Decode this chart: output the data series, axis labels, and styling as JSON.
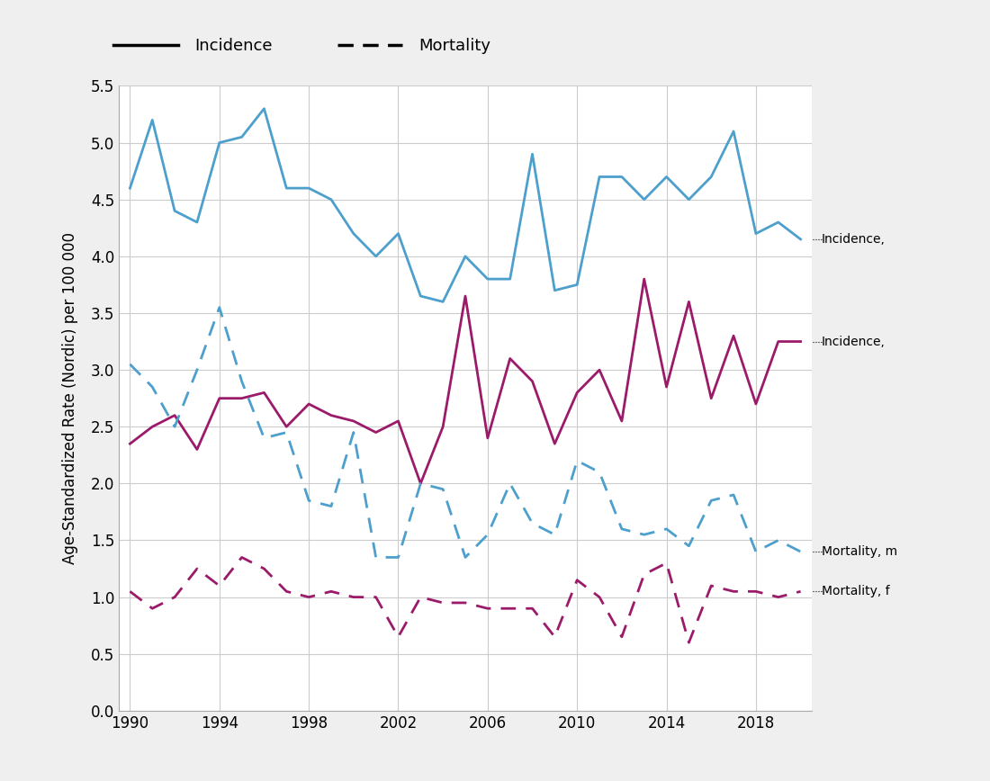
{
  "years": [
    1990,
    1991,
    1992,
    1993,
    1994,
    1995,
    1996,
    1997,
    1998,
    1999,
    2000,
    2001,
    2002,
    2003,
    2004,
    2005,
    2006,
    2007,
    2008,
    2009,
    2010,
    2011,
    2012,
    2013,
    2014,
    2015,
    2016,
    2017,
    2018,
    2019,
    2020
  ],
  "incidence_male": [
    4.6,
    5.2,
    4.4,
    4.3,
    5.0,
    5.05,
    5.3,
    4.6,
    4.6,
    4.5,
    4.2,
    4.0,
    4.2,
    3.65,
    3.6,
    4.0,
    3.8,
    3.8,
    4.9,
    3.7,
    3.75,
    4.7,
    4.7,
    4.5,
    4.7,
    4.5,
    4.7,
    5.1,
    4.2,
    4.3,
    4.15
  ],
  "incidence_female": [
    2.35,
    2.5,
    2.6,
    2.3,
    2.75,
    2.75,
    2.8,
    2.5,
    2.7,
    2.6,
    2.55,
    2.45,
    2.55,
    2.0,
    2.5,
    3.65,
    2.4,
    3.1,
    2.9,
    2.35,
    2.8,
    3.0,
    2.55,
    3.8,
    2.85,
    3.6,
    2.75,
    3.3,
    2.7,
    3.25,
    3.25
  ],
  "mortality_male": [
    3.05,
    2.85,
    2.5,
    3.0,
    3.55,
    2.9,
    2.4,
    2.45,
    1.85,
    1.8,
    2.45,
    1.35,
    1.35,
    2.0,
    1.95,
    1.35,
    1.55,
    2.0,
    1.65,
    1.55,
    2.2,
    2.1,
    1.6,
    1.55,
    1.6,
    1.45,
    1.85,
    1.9,
    1.4,
    1.5,
    1.4
  ],
  "mortality_female": [
    1.05,
    0.9,
    1.0,
    1.25,
    1.1,
    1.35,
    1.25,
    1.05,
    1.0,
    1.05,
    1.0,
    1.0,
    0.65,
    1.0,
    0.95,
    0.95,
    0.9,
    0.9,
    0.9,
    0.65,
    1.15,
    1.0,
    0.65,
    1.2,
    1.3,
    0.6,
    1.1,
    1.05,
    1.05,
    1.0,
    1.05
  ],
  "color_blue": "#4d9fcc",
  "color_magenta": "#9b1a6a",
  "ylabel": "Age-Standardized Rate (Nordic) per 100 000",
  "ylim": [
    0,
    5.5
  ],
  "yticks": [
    0,
    0.5,
    1.0,
    1.5,
    2.0,
    2.5,
    3.0,
    3.5,
    4.0,
    4.5,
    5.0,
    5.5
  ],
  "xlim": [
    1989.5,
    2020.5
  ],
  "xticks": [
    1990,
    1994,
    1998,
    2002,
    2006,
    2010,
    2014,
    2018
  ],
  "legend_incidence_label": "Incidence",
  "legend_mortality_label": "Mortality",
  "annotation_inc_male": "Incidence,",
  "annotation_inc_female": "Incidence,",
  "annotation_mort_male": "Mortality, m",
  "annotation_mort_female": "Mortality, f",
  "background_color": "#ffffff",
  "figure_background": "#efefef",
  "grid_color": "#cccccc"
}
